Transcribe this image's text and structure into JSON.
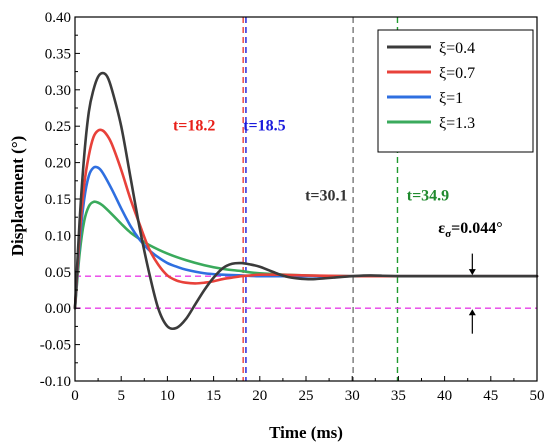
{
  "chart_data": {
    "type": "line",
    "xlabel": "Time (ms)",
    "ylabel": "Displacement (°)",
    "xlim": [
      0,
      50
    ],
    "ylim": [
      -0.1,
      0.4
    ],
    "xticks": [
      "0",
      "5",
      "10",
      "15",
      "20",
      "25",
      "30",
      "35",
      "40",
      "45",
      "50"
    ],
    "yticks": [
      "-0.10",
      "-0.05",
      "0.00",
      "0.05",
      "0.10",
      "0.15",
      "0.20",
      "0.25",
      "0.30",
      "0.35",
      "0.40"
    ],
    "legend_position": "top-right",
    "series": [
      {
        "name": "ξ=0.4",
        "color": "#3b3b3b",
        "x": [
          0,
          0.5,
          1,
          1.5,
          2,
          2.5,
          3,
          3.5,
          4,
          5,
          6,
          7,
          8,
          9,
          10,
          11,
          12,
          13,
          14,
          15,
          16,
          17,
          18,
          19,
          20,
          21,
          22,
          23,
          24,
          25,
          26,
          27,
          28,
          30,
          32,
          35,
          40,
          45,
          50
        ],
        "y": [
          0,
          0.12,
          0.21,
          0.27,
          0.3,
          0.318,
          0.323,
          0.318,
          0.3,
          0.25,
          0.18,
          0.11,
          0.05,
          0.0,
          -0.025,
          -0.027,
          -0.015,
          0.005,
          0.025,
          0.042,
          0.055,
          0.061,
          0.062,
          0.06,
          0.057,
          0.052,
          0.047,
          0.043,
          0.041,
          0.04,
          0.04,
          0.041,
          0.042,
          0.044,
          0.045,
          0.044,
          0.044,
          0.044,
          0.044
        ]
      },
      {
        "name": "ξ=0.7",
        "color": "#e8413a",
        "x": [
          0,
          0.5,
          1,
          1.5,
          2,
          2.5,
          3,
          3.5,
          4,
          5,
          6,
          7,
          8,
          9,
          10,
          11,
          12,
          13,
          14,
          15,
          16,
          17,
          18,
          19,
          20,
          22,
          25,
          30,
          35,
          40,
          45,
          50
        ],
        "y": [
          0,
          0.1,
          0.17,
          0.21,
          0.235,
          0.244,
          0.244,
          0.237,
          0.225,
          0.19,
          0.15,
          0.115,
          0.082,
          0.06,
          0.045,
          0.038,
          0.035,
          0.034,
          0.035,
          0.037,
          0.04,
          0.042,
          0.044,
          0.045,
          0.046,
          0.046,
          0.045,
          0.044,
          0.044,
          0.044,
          0.044,
          0.044
        ]
      },
      {
        "name": "ξ=1",
        "color": "#2f6fe0",
        "x": [
          0,
          0.5,
          1,
          1.5,
          2,
          2.5,
          3,
          4,
          5,
          6,
          7,
          8,
          9,
          10,
          11,
          12,
          14,
          16,
          18,
          20,
          25,
          30,
          35,
          40,
          45,
          50
        ],
        "y": [
          0,
          0.09,
          0.15,
          0.182,
          0.193,
          0.193,
          0.186,
          0.163,
          0.137,
          0.113,
          0.094,
          0.08,
          0.07,
          0.062,
          0.057,
          0.053,
          0.048,
          0.046,
          0.045,
          0.044,
          0.044,
          0.044,
          0.044,
          0.044,
          0.044,
          0.044
        ]
      },
      {
        "name": "ξ=1.3",
        "color": "#3aaa5c",
        "x": [
          0,
          0.5,
          1,
          1.5,
          2,
          2.5,
          3,
          4,
          5,
          6,
          7,
          8,
          10,
          12,
          14,
          16,
          18,
          20,
          25,
          30,
          35,
          40,
          45,
          50
        ],
        "y": [
          0,
          0.075,
          0.12,
          0.14,
          0.146,
          0.145,
          0.141,
          0.129,
          0.116,
          0.104,
          0.095,
          0.087,
          0.075,
          0.066,
          0.059,
          0.054,
          0.051,
          0.048,
          0.045,
          0.044,
          0.044,
          0.044,
          0.044,
          0.044
        ]
      }
    ],
    "reference_lines": [
      {
        "orientation": "vertical",
        "x": 18.2,
        "color": "#e8413a",
        "style": "dashed"
      },
      {
        "orientation": "vertical",
        "x": 18.5,
        "color": "#1a1adc",
        "style": "dashed"
      },
      {
        "orientation": "vertical",
        "x": 30.1,
        "color": "#777777",
        "style": "dashed"
      },
      {
        "orientation": "vertical",
        "x": 34.9,
        "color": "#1f9a2e",
        "style": "dashed"
      },
      {
        "orientation": "horizontal",
        "y": 0.044,
        "color": "#e83ee8",
        "style": "dashed"
      },
      {
        "orientation": "horizontal",
        "y": 0.0,
        "color": "#e83ee8",
        "style": "dashed"
      }
    ],
    "annotations": [
      {
        "text": "t=18.2",
        "color": "#e8201a",
        "x": 12.9,
        "y": 0.244
      },
      {
        "text": "t=18.5",
        "color": "#1a1adc",
        "x": 20.5,
        "y": 0.244
      },
      {
        "text": "t=30.1",
        "color": "#333333",
        "x": 27.2,
        "y": 0.148
      },
      {
        "text": "t=34.9",
        "color": "#1f8a2e",
        "x": 38.2,
        "y": 0.148
      }
    ],
    "epsilon_annotation": {
      "symbol": "ε",
      "subscript": "σ",
      "value_text": "=0.044°",
      "x": 42.8,
      "y": 0.103,
      "arrow_x": 43.0,
      "arrow_top_from": 0.075,
      "arrow_bottom_from": -0.035
    }
  }
}
